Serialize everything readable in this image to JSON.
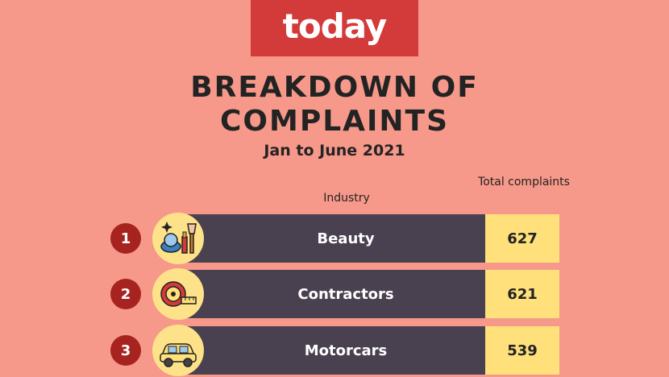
{
  "brand": {
    "logo_text": "today"
  },
  "header": {
    "title_line1": "BREAKDOWN OF",
    "title_line2": "COMPLAINTS",
    "subtitle": "Jan to June 2021"
  },
  "columns": {
    "industry": "Industry",
    "total": "Total complaints"
  },
  "icons": [
    "makeup-icon",
    "tape-measure-icon",
    "car-icon"
  ],
  "colors": {
    "background": "#f7998a",
    "logo": "#d33a3a",
    "bar": "#4a4150",
    "rank": "#a7231f",
    "value_box": "#ffe07a",
    "icon_circle": "#fde28a"
  },
  "chart_data": {
    "type": "table",
    "title": "BREAKDOWN OF COMPLAINTS",
    "subtitle": "Jan to June 2021",
    "columns": [
      "Industry",
      "Total complaints"
    ],
    "ranks": [
      "1",
      "2",
      "3"
    ],
    "categories": [
      "Beauty",
      "Contractors",
      "Motorcars"
    ],
    "values": [
      627,
      621,
      539
    ]
  }
}
